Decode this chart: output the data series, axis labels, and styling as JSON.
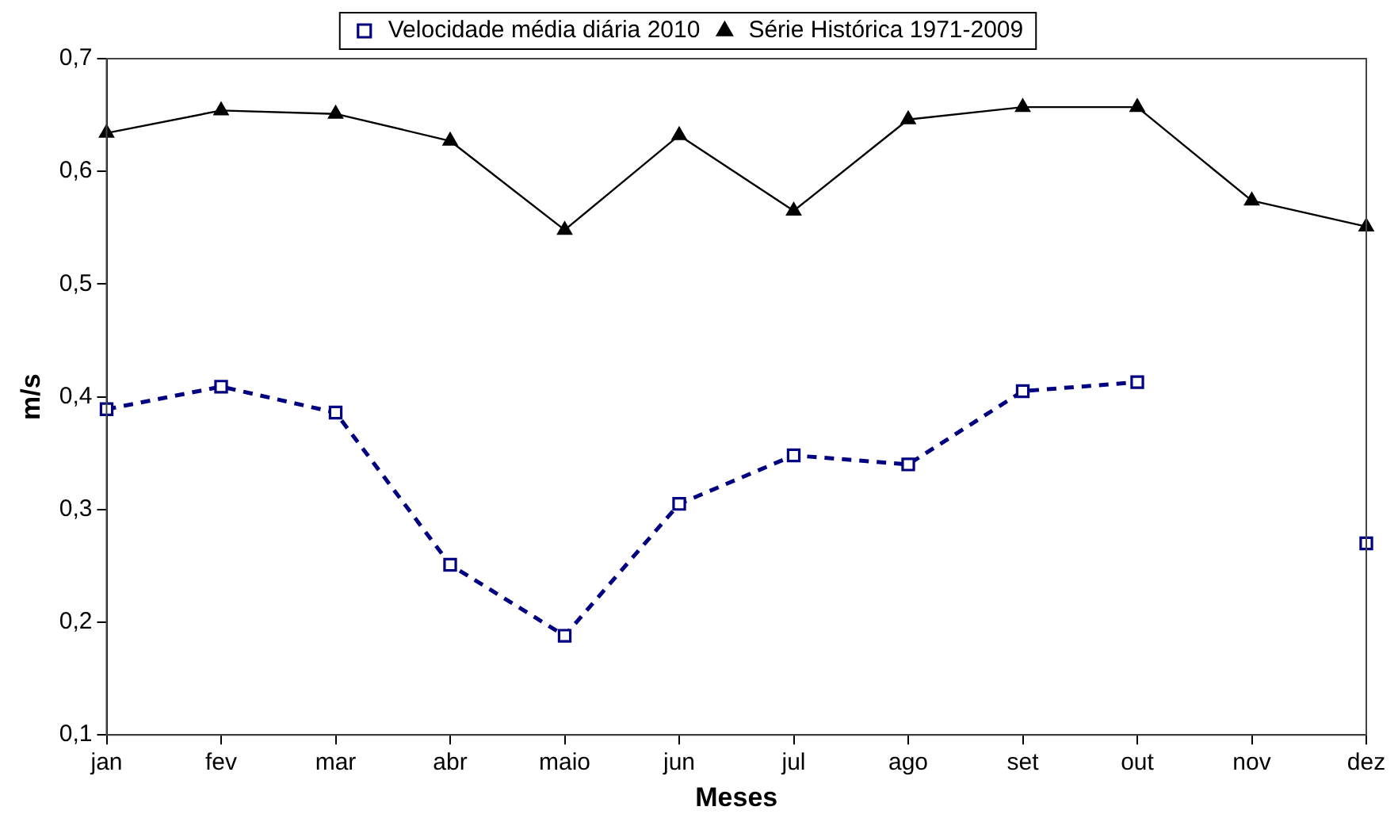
{
  "chart_data": {
    "type": "line",
    "xlabel": "Meses",
    "ylabel": "m/s",
    "categories": [
      "jan",
      "fev",
      "mar",
      "abr",
      "maio",
      "jun",
      "jul",
      "ago",
      "set",
      "out",
      "nov",
      "dez"
    ],
    "series": [
      {
        "name": "Velocidade média diária 2010",
        "color": "#000080",
        "marker": "square",
        "line_style": "dashed",
        "values": [
          0.389,
          0.409,
          0.386,
          0.251,
          0.188,
          0.305,
          0.348,
          0.34,
          0.405,
          0.413,
          null,
          0.27
        ]
      },
      {
        "name": "Série Histórica 1971-2009",
        "color": "#000000",
        "marker": "triangle",
        "line_style": "solid",
        "values": [
          0.634,
          0.654,
          0.651,
          0.627,
          0.548,
          0.632,
          0.565,
          0.646,
          0.657,
          0.657,
          0.574,
          0.551
        ]
      }
    ],
    "ylim": [
      0.1,
      0.7
    ],
    "yticks": [
      {
        "value": 0.1,
        "label": "0,1"
      },
      {
        "value": 0.2,
        "label": "0,2"
      },
      {
        "value": 0.3,
        "label": "0,3"
      },
      {
        "value": 0.4,
        "label": "0,4"
      },
      {
        "value": 0.5,
        "label": "0,5"
      },
      {
        "value": 0.6,
        "label": "0,6"
      },
      {
        "value": 0.7,
        "label": "0,7"
      }
    ],
    "grid": false,
    "legend": "top"
  }
}
